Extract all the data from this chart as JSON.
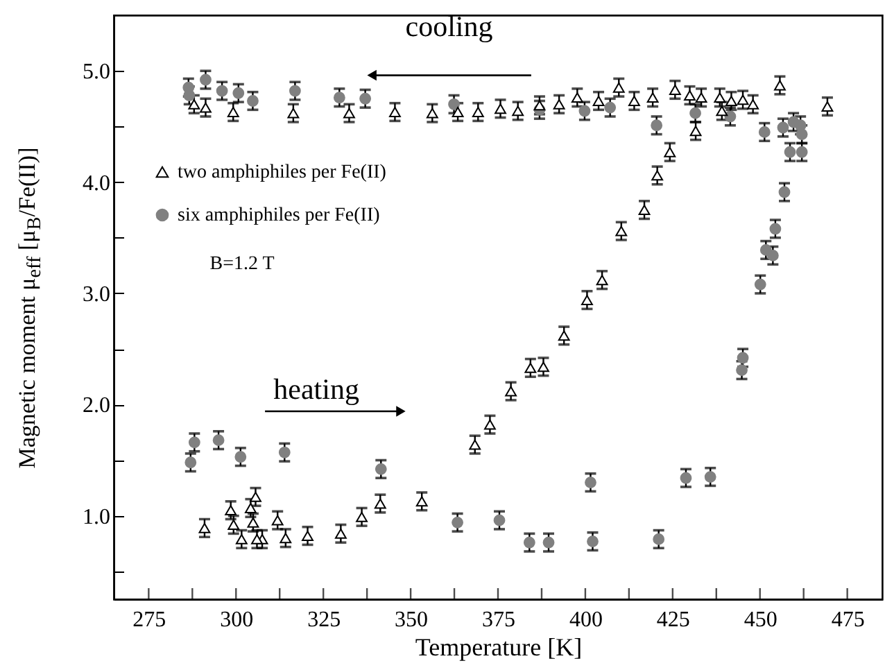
{
  "chart_data": {
    "type": "scatter",
    "xlabel": "Temperature [K]",
    "ylabel": "Magnetic moment μ$_{eff}$ [μ$_{B}$/Fe(II)]",
    "xlim": [
      265,
      485
    ],
    "ylim": [
      0.25,
      5.5
    ],
    "xticks": [
      275,
      {
        "value": 287.5,
        "label": null
      },
      300,
      {
        "value": 312.5,
        "label": null
      },
      325,
      {
        "value": 337.5,
        "label": null
      },
      350,
      {
        "value": 362.5,
        "label": null
      },
      375,
      {
        "value": 387.5,
        "label": null
      },
      400,
      {
        "value": 412.5,
        "label": null
      },
      425,
      {
        "value": 437.5,
        "label": null
      },
      450,
      {
        "value": 462.5,
        "label": null
      },
      475
    ],
    "yticks": [
      {
        "value": 0.5,
        "label": null
      },
      {
        "value": 1,
        "label": "1.0"
      },
      {
        "value": 1.5,
        "label": null
      },
      {
        "value": 2,
        "label": "2.0"
      },
      {
        "value": 2.5,
        "label": null
      },
      {
        "value": 3,
        "label": "3.0"
      },
      {
        "value": 3.5,
        "label": null
      },
      {
        "value": 4,
        "label": "4.0"
      },
      {
        "value": 4.5,
        "label": null
      },
      {
        "value": 5,
        "label": "5.0"
      }
    ],
    "grid": false,
    "legend": "left",
    "annotations": [
      "cooling",
      "heating",
      "B=1.2 T"
    ],
    "series": [
      {
        "name": "two amphiphiles per Fe(II)",
        "color": "#000000",
        "marker": "triangle",
        "x": [
          288,
          291.3,
          299.2,
          316.4,
          332.4,
          345.5,
          356.2,
          363.5,
          369.3,
          375.7,
          380.7,
          386.9,
          392.5,
          397.7,
          403.8,
          409.6,
          414,
          419.3,
          425.7,
          429.9,
          433.2,
          438.5,
          441.8,
          445.1,
          448,
          439.1,
          431.6,
          455.7,
          469.3,
          424.2,
          420.6,
          416.9,
          410.3,
          404.8,
          400.5,
          393.9,
          388,
          384.3,
          378.7,
          372.7,
          368.4,
          353.2,
          341.3,
          336,
          330,
          320.5,
          314.2,
          311.9,
          307.5,
          306,
          305.6,
          304.2,
          304.9,
          301.6,
          299.3,
          298.5,
          291
        ],
        "values": [
          4.7,
          4.67,
          4.63,
          4.62,
          4.62,
          4.63,
          4.62,
          4.63,
          4.63,
          4.66,
          4.64,
          4.69,
          4.7,
          4.76,
          4.73,
          4.85,
          4.73,
          4.76,
          4.83,
          4.78,
          4.76,
          4.76,
          4.73,
          4.74,
          4.7,
          4.64,
          4.46,
          4.87,
          4.68,
          4.27,
          4.06,
          3.75,
          3.56,
          3.12,
          2.94,
          2.62,
          2.34,
          2.33,
          2.12,
          1.82,
          1.64,
          1.13,
          1.11,
          0.99,
          0.84,
          0.82,
          0.8,
          0.96,
          0.79,
          0.79,
          1.17,
          1.07,
          0.94,
          0.79,
          0.92,
          1.05,
          0.89
        ],
        "errors": [
          0.08,
          0.08,
          0.08,
          0.08,
          0.08,
          0.08,
          0.08,
          0.08,
          0.08,
          0.08,
          0.08,
          0.08,
          0.08,
          0.08,
          0.08,
          0.08,
          0.08,
          0.08,
          0.08,
          0.08,
          0.08,
          0.08,
          0.08,
          0.08,
          0.08,
          0.08,
          0.08,
          0.08,
          0.08,
          0.08,
          0.08,
          0.08,
          0.08,
          0.08,
          0.08,
          0.08,
          0.08,
          0.08,
          0.08,
          0.08,
          0.08,
          0.08,
          0.08,
          0.08,
          0.08,
          0.08,
          0.08,
          0.08,
          0.08,
          0.08,
          0.08,
          0.08,
          0.08,
          0.08,
          0.08,
          0.08,
          0.08
        ]
      },
      {
        "name": "six amphiphiles per Fe(II)",
        "color": "#808080",
        "marker": "circle",
        "x": [
          286.4,
          286.6,
          291.3,
          296,
          300.7,
          304.8,
          316.9,
          329.6,
          337,
          362.4,
          386.9,
          399.8,
          407.1,
          420.4,
          431.5,
          441.5,
          451.3,
          456.6,
          459.6,
          461.6,
          462,
          462,
          458.6,
          457,
          454.4,
          453.7,
          451.7,
          450.1,
          445.1,
          444.8,
          435.8,
          428.8,
          421,
          402.1,
          401.5,
          389.5,
          384,
          375.4,
          363.4,
          341.5,
          313.9,
          301.3,
          295,
          288.1,
          287
        ],
        "values": [
          4.85,
          4.78,
          4.92,
          4.82,
          4.8,
          4.73,
          4.82,
          4.76,
          4.75,
          4.7,
          4.65,
          4.64,
          4.67,
          4.51,
          4.62,
          4.59,
          4.45,
          4.49,
          4.54,
          4.51,
          4.43,
          4.27,
          4.27,
          3.91,
          3.58,
          3.34,
          3.39,
          3.08,
          2.42,
          2.31,
          1.35,
          1.34,
          0.79,
          0.77,
          1.3,
          0.76,
          0.76,
          0.96,
          0.94,
          1.42,
          1.57,
          1.53,
          1.68,
          1.66,
          1.48
        ],
        "errors": [
          0.08,
          0.08,
          0.08,
          0.08,
          0.08,
          0.08,
          0.08,
          0.08,
          0.08,
          0.08,
          0.08,
          0.08,
          0.08,
          0.08,
          0.08,
          0.08,
          0.08,
          0.08,
          0.08,
          0.08,
          0.08,
          0.08,
          0.08,
          0.08,
          0.08,
          0.08,
          0.08,
          0.08,
          0.08,
          0.08,
          0.08,
          0.08,
          0.08,
          0.08,
          0.08,
          0.08,
          0.08,
          0.08,
          0.08,
          0.08,
          0.08,
          0.08,
          0.08,
          0.08,
          0.08
        ]
      }
    ]
  }
}
